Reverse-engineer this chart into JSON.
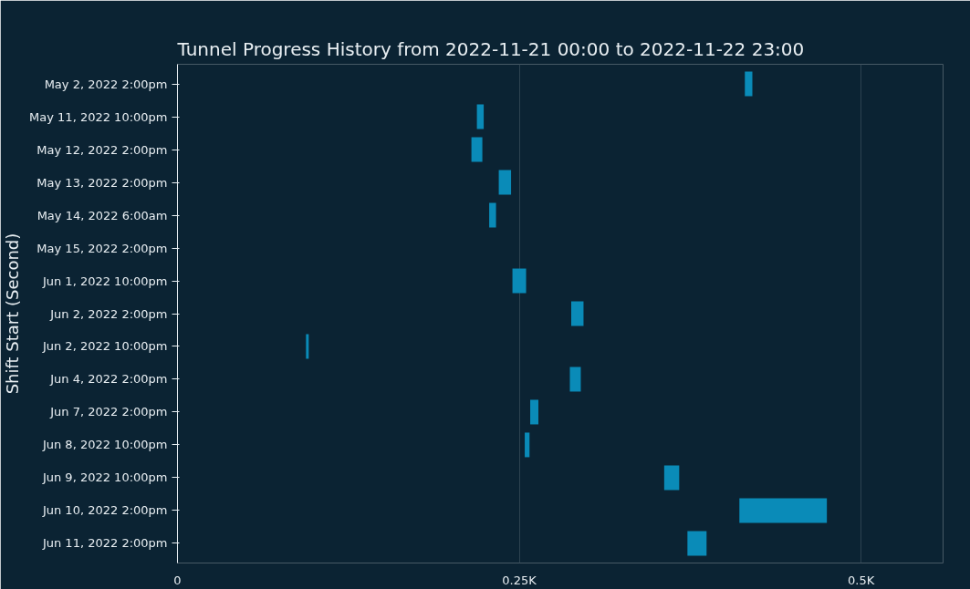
{
  "chart_data": {
    "type": "bar",
    "orientation": "horizontal",
    "title": "Tunnel Progress History from 2022-11-21 00:00 to 2022-11-22 23:00",
    "ylabel": "Shift Start (Second)",
    "categories": [
      "May 2, 2022 2:00pm",
      "May 11, 2022 10:00pm",
      "May 12, 2022 2:00pm",
      "May 13, 2022 2:00pm",
      "May 14, 2022 6:00am",
      "May 15, 2022 2:00pm",
      "Jun 1, 2022 10:00pm",
      "Jun 2, 2022 2:00pm",
      "Jun 2, 2022 10:00pm",
      "Jun 4, 2022 2:00pm",
      "Jun 7, 2022 2:00pm",
      "Jun 8, 2022 10:00pm",
      "Jun 9, 2022 10:00pm",
      "Jun 10, 2022 2:00pm",
      "Jun 11, 2022 2:00pm"
    ],
    "base": [
      415,
      219,
      215,
      235,
      228,
      null,
      245,
      288,
      94,
      287,
      258,
      254,
      356,
      411,
      373
    ],
    "values": [
      5.5,
      5,
      8,
      9,
      5,
      null,
      10,
      9,
      2,
      8,
      6,
      3.5,
      11,
      64,
      14
    ],
    "color": "#0a8bb8",
    "xlim": [
      0,
      560
    ],
    "xticks": [
      0,
      {
        "value": 250,
        "label": "0.25K"
      },
      {
        "value": 500,
        "label": "0.5K"
      }
    ],
    "grid": "x"
  }
}
